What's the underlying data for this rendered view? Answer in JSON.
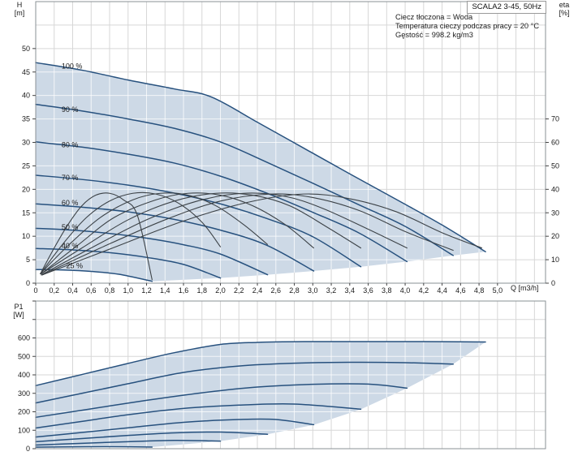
{
  "window": {
    "title_box": "SCALA2 3-45, 50Hz"
  },
  "info_box": {
    "lines": [
      "Ciecz tłoczona = Woda",
      "Temperatura cieczy podczas pracy = 20 °C",
      "Gęstość = 998.2 kg/m3"
    ]
  },
  "axis_labels": {
    "head_unit": [
      "H",
      "[m]"
    ],
    "power_unit": [
      "P1",
      "[W]"
    ],
    "eta_unit": [
      "eta",
      "[%]"
    ],
    "flow_unit": "Q [m3/h]"
  },
  "colors": {
    "curve": "#27517e",
    "fill": "#cdd9e6",
    "eta_curve": "#3c4247",
    "grid": "#d7d7d7",
    "grid_on_fill": "rgba(255,255,255,0.75)",
    "frame": "#8a9096",
    "tick": "#444444",
    "text": "#1a1a1a"
  },
  "chart_data": [
    {
      "type": "line",
      "name": "head-curves",
      "xlabel": "Q [m3/h]",
      "ylabel": "H [m]",
      "y2label": "eta [%]",
      "xlim": [
        0,
        5.52
      ],
      "ylim": [
        0,
        60
      ],
      "y2lim": [
        0,
        120
      ],
      "grid": {
        "x_step": 0.2,
        "y_step": 5
      },
      "x_tick_pos": [
        0,
        0.2,
        0.4,
        0.6,
        0.8,
        1.0,
        1.2,
        1.4,
        1.6,
        1.8,
        2.0,
        2.2,
        2.4,
        2.6,
        2.8,
        3.0,
        3.2,
        3.4,
        3.6,
        3.8,
        4.0,
        4.2,
        4.4,
        4.6,
        4.8,
        5.0
      ],
      "x_tick_labels": [
        "0",
        "0,2",
        "0,4",
        "0,6",
        "0,8",
        "1,0",
        "1,2",
        "1,4",
        "1,6",
        "1,8",
        "2,0",
        "2,2",
        "2,4",
        "2,6",
        "2,8",
        "3,0",
        "3,2",
        "3,4",
        "3,6",
        "3,8",
        "4,0",
        "4,2",
        "4,4",
        "4,6",
        "4,8",
        "5,0"
      ],
      "y_ticks": [
        "0",
        "5",
        "10",
        "15",
        "20",
        "25",
        "30",
        "35",
        "40",
        "45",
        "50"
      ],
      "y2_ticks": [
        "0",
        "10",
        "20",
        "30",
        "40",
        "50",
        "60",
        "70"
      ],
      "series": [
        {
          "name": "100 %",
          "points": [
            [
              0,
              47
            ],
            [
              0.5,
              45.4
            ],
            [
              1.0,
              43.3
            ],
            [
              1.5,
              41.4
            ],
            [
              1.9,
              39.7
            ],
            [
              2.4,
              34.3
            ],
            [
              2.9,
              28.8
            ],
            [
              3.4,
              23.3
            ],
            [
              3.9,
              17.9
            ],
            [
              4.4,
              12.4
            ],
            [
              4.87,
              6.7
            ]
          ]
        },
        {
          "name": "90 %",
          "points": [
            [
              0,
              38.1
            ],
            [
              0.5,
              36.7
            ],
            [
              1.0,
              35.0
            ],
            [
              1.5,
              33.0
            ],
            [
              2.0,
              30.1
            ],
            [
              2.5,
              25.8
            ],
            [
              3.0,
              21.3
            ],
            [
              3.5,
              16.7
            ],
            [
              4.0,
              12.1
            ],
            [
              4.52,
              5.9
            ]
          ]
        },
        {
          "name": "80 %",
          "points": [
            [
              0,
              30.1
            ],
            [
              0.5,
              29.0
            ],
            [
              1.0,
              27.5
            ],
            [
              1.5,
              25.6
            ],
            [
              2.0,
              22.8
            ],
            [
              2.5,
              19.2
            ],
            [
              3.0,
              15.1
            ],
            [
              3.5,
              10.7
            ],
            [
              4.02,
              4.6
            ]
          ]
        },
        {
          "name": "70 %",
          "points": [
            [
              0,
              23.0
            ],
            [
              0.5,
              22.1
            ],
            [
              1.0,
              20.9
            ],
            [
              1.5,
              19.2
            ],
            [
              2.0,
              16.9
            ],
            [
              2.5,
              13.8
            ],
            [
              3.0,
              9.9
            ],
            [
              3.52,
              3.5
            ]
          ]
        },
        {
          "name": "60 %",
          "points": [
            [
              0,
              16.9
            ],
            [
              0.5,
              16.2
            ],
            [
              1.0,
              15.2
            ],
            [
              1.5,
              13.6
            ],
            [
              2.0,
              11.3
            ],
            [
              2.5,
              8.1
            ],
            [
              3.01,
              2.6
            ]
          ]
        },
        {
          "name": "50 %",
          "points": [
            [
              0,
              11.7
            ],
            [
              0.4,
              11.3
            ],
            [
              0.8,
              10.6
            ],
            [
              1.2,
              9.6
            ],
            [
              1.6,
              8.2
            ],
            [
              2.0,
              6.2
            ],
            [
              2.51,
              1.8
            ]
          ]
        },
        {
          "name": "40 %",
          "points": [
            [
              0,
              7.4
            ],
            [
              0.4,
              7.1
            ],
            [
              0.8,
              6.5
            ],
            [
              1.2,
              5.5
            ],
            [
              1.6,
              4.0
            ],
            [
              2.0,
              1.1
            ]
          ]
        },
        {
          "name": "25 %",
          "points": [
            [
              0,
              2.9
            ],
            [
              0.3,
              2.8
            ],
            [
              0.6,
              2.5
            ],
            [
              0.9,
              1.9
            ],
            [
              1.26,
              0.4
            ]
          ]
        }
      ],
      "eta_series": [
        {
          "name": "100 %",
          "points": [
            [
              0.07,
              3.5
            ],
            [
              0.8,
              14.5
            ],
            [
              1.6,
              26.5
            ],
            [
              2.3,
              34.5
            ],
            [
              2.9,
              38
            ],
            [
              3.4,
              36
            ],
            [
              3.9,
              30.5
            ],
            [
              4.4,
              21.5
            ],
            [
              4.83,
              15
            ]
          ]
        },
        {
          "name": "90 %",
          "points": [
            [
              0.07,
              3.5
            ],
            [
              0.7,
              15
            ],
            [
              1.4,
              27
            ],
            [
              2.0,
              35
            ],
            [
              2.55,
              38
            ],
            [
              3.0,
              36.5
            ],
            [
              3.5,
              31
            ],
            [
              4.0,
              22
            ],
            [
              4.52,
              14
            ]
          ]
        },
        {
          "name": "80 %",
          "points": [
            [
              0.06,
              3.5
            ],
            [
              0.6,
              15
            ],
            [
              1.2,
              27
            ],
            [
              1.75,
              35
            ],
            [
              2.25,
              38.3
            ],
            [
              2.7,
              37
            ],
            [
              3.1,
              32
            ],
            [
              3.6,
              23
            ],
            [
              4.02,
              15
            ]
          ]
        },
        {
          "name": "70 %",
          "points": [
            [
              0.06,
              4
            ],
            [
              0.5,
              15
            ],
            [
              1.0,
              27
            ],
            [
              1.5,
              35
            ],
            [
              1.95,
              38.3
            ],
            [
              2.35,
              37.5
            ],
            [
              2.75,
              33
            ],
            [
              3.15,
              24
            ],
            [
              3.52,
              15
            ]
          ]
        },
        {
          "name": "60 %",
          "points": [
            [
              0.06,
              4
            ],
            [
              0.45,
              16
            ],
            [
              0.85,
              28
            ],
            [
              1.3,
              35.5
            ],
            [
              1.65,
              38.3
            ],
            [
              2.0,
              37.5
            ],
            [
              2.35,
              33
            ],
            [
              2.7,
              25
            ],
            [
              3.01,
              15
            ]
          ]
        },
        {
          "name": "50 %",
          "points": [
            [
              0.05,
              4
            ],
            [
              0.35,
              16
            ],
            [
              0.7,
              28
            ],
            [
              1.05,
              35.5
            ],
            [
              1.35,
              38.3
            ],
            [
              1.65,
              37.5
            ],
            [
              1.95,
              33
            ],
            [
              2.25,
              25
            ],
            [
              2.51,
              16.5
            ]
          ]
        },
        {
          "name": "40 %",
          "points": [
            [
              0.05,
              4
            ],
            [
              0.3,
              17
            ],
            [
              0.55,
              28
            ],
            [
              0.8,
              35
            ],
            [
              1.05,
              38.3
            ],
            [
              1.3,
              38
            ],
            [
              1.55,
              34
            ],
            [
              1.8,
              26
            ],
            [
              2.0,
              15.5
            ]
          ]
        },
        {
          "name": "25 %",
          "points": [
            [
              0.05,
              4
            ],
            [
              0.2,
              15
            ],
            [
              0.35,
              25
            ],
            [
              0.5,
              33
            ],
            [
              0.65,
              37.5
            ],
            [
              0.8,
              38.3
            ],
            [
              0.95,
              35.5
            ],
            [
              1.1,
              29
            ],
            [
              1.26,
              1.5
            ]
          ]
        }
      ],
      "max_flow_boundary": [
        [
          1.26,
          0.4
        ],
        [
          2.0,
          1.1
        ],
        [
          2.51,
          1.8
        ],
        [
          3.01,
          2.6
        ],
        [
          3.52,
          3.5
        ],
        [
          4.02,
          4.6
        ],
        [
          4.52,
          5.9
        ],
        [
          4.87,
          6.7
        ]
      ],
      "speed_labels": [
        {
          "text": "100 %",
          "q": 0.28,
          "h": 45.7
        },
        {
          "text": "90 %",
          "q": 0.28,
          "h": 36.5
        },
        {
          "text": "80 %",
          "q": 0.28,
          "h": 29.0
        },
        {
          "text": "70 %",
          "q": 0.28,
          "h": 22.0
        },
        {
          "text": "60 %",
          "q": 0.28,
          "h": 16.6
        },
        {
          "text": "50 %",
          "q": 0.28,
          "h": 11.4
        },
        {
          "text": "40 %",
          "q": 0.28,
          "h": 7.4
        },
        {
          "text": "25 %",
          "q": 0.33,
          "h": 3.2
        }
      ]
    },
    {
      "type": "line",
      "name": "power-curves",
      "xlabel": "Q [m3/h]",
      "ylabel": "P1 [W]",
      "xlim": [
        0,
        5.52
      ],
      "ylim": [
        0,
        800
      ],
      "grid": {
        "x_step": 0.2,
        "y_step": 100
      },
      "y_ticks": [
        "0",
        "100",
        "200",
        "300",
        "400",
        "500",
        "600"
      ],
      "series": [
        {
          "name": "100 %",
          "points": [
            [
              0,
              342
            ],
            [
              0.5,
              402
            ],
            [
              1.0,
              462
            ],
            [
              1.5,
              520
            ],
            [
              2.0,
              565
            ],
            [
              2.4,
              576
            ],
            [
              2.9,
              580
            ],
            [
              3.5,
              580
            ],
            [
              4.2,
              580
            ],
            [
              4.87,
              578
            ]
          ]
        },
        {
          "name": "90 %",
          "points": [
            [
              0,
              248
            ],
            [
              0.5,
              300
            ],
            [
              1.0,
              352
            ],
            [
              1.6,
              413
            ],
            [
              2.2,
              448
            ],
            [
              2.8,
              463
            ],
            [
              3.4,
              468
            ],
            [
              4.0,
              466
            ],
            [
              4.52,
              458
            ]
          ]
        },
        {
          "name": "80 %",
          "points": [
            [
              0,
              170
            ],
            [
              0.6,
              216
            ],
            [
              1.2,
              262
            ],
            [
              1.8,
              303
            ],
            [
              2.4,
              334
            ],
            [
              3.0,
              349
            ],
            [
              3.6,
              350
            ],
            [
              4.02,
              328
            ]
          ]
        },
        {
          "name": "70 %",
          "points": [
            [
              0,
              112
            ],
            [
              0.5,
              148
            ],
            [
              1.0,
              184
            ],
            [
              1.6,
              218
            ],
            [
              2.2,
              236
            ],
            [
              2.8,
              242
            ],
            [
              3.52,
              214
            ]
          ]
        },
        {
          "name": "60 %",
          "points": [
            [
              0,
              63
            ],
            [
              0.5,
              88
            ],
            [
              1.0,
              113
            ],
            [
              1.6,
              143
            ],
            [
              2.2,
              158
            ],
            [
              2.6,
              158
            ],
            [
              3.01,
              130
            ]
          ]
        },
        {
          "name": "50 %",
          "points": [
            [
              0,
              38
            ],
            [
              0.5,
              55
            ],
            [
              1.0,
              72
            ],
            [
              1.5,
              86
            ],
            [
              2.0,
              90
            ],
            [
              2.51,
              78
            ]
          ]
        },
        {
          "name": "40 %",
          "points": [
            [
              0,
              20
            ],
            [
              0.5,
              29
            ],
            [
              1.0,
              38
            ],
            [
              1.5,
              45
            ],
            [
              2.0,
              41
            ]
          ]
        },
        {
          "name": "25 %",
          "points": [
            [
              0,
              8
            ],
            [
              0.4,
              10
            ],
            [
              0.8,
              11
            ],
            [
              1.26,
              9
            ]
          ]
        }
      ],
      "max_flow_boundary": [
        [
          1.26,
          9
        ],
        [
          2.0,
          41
        ],
        [
          2.51,
          78
        ],
        [
          3.01,
          129
        ],
        [
          3.52,
          213
        ],
        [
          4.02,
          328
        ],
        [
          4.52,
          458
        ],
        [
          4.87,
          577
        ]
      ]
    }
  ]
}
